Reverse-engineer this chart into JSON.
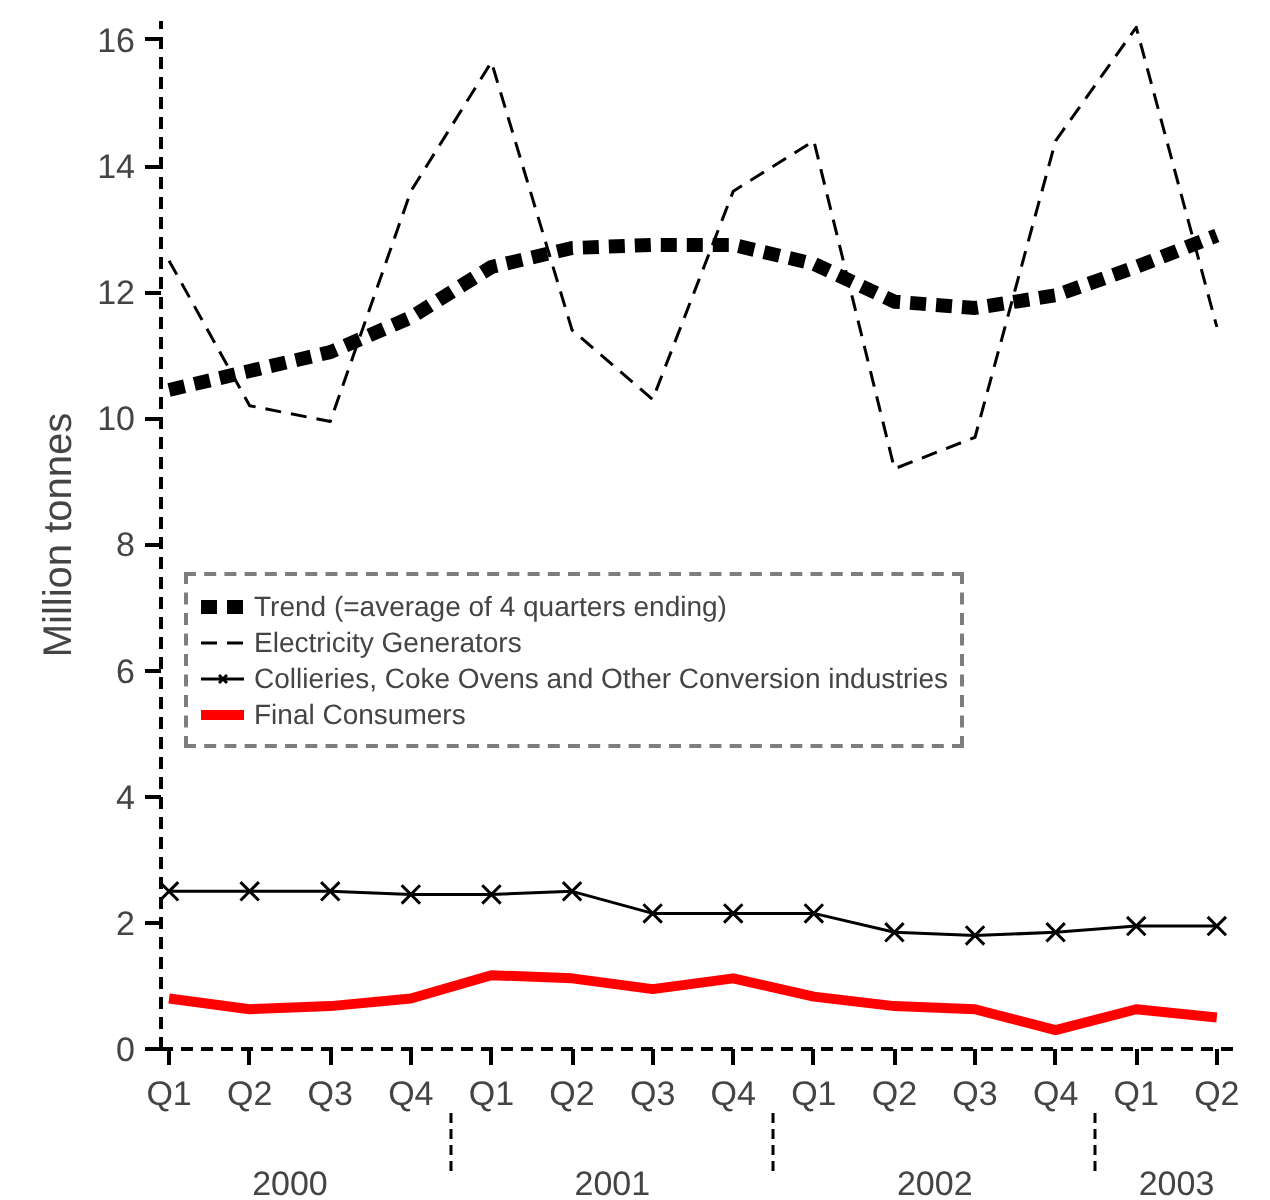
{
  "chart_data": {
    "type": "line",
    "ylabel": "Million tonnes",
    "categories": [
      "Q1",
      "Q2",
      "Q3",
      "Q4",
      "Q1",
      "Q2",
      "Q3",
      "Q4",
      "Q1",
      "Q2",
      "Q3",
      "Q4",
      "Q1",
      "Q2"
    ],
    "annotations": [
      "2000",
      "2001",
      "2002",
      "2003"
    ],
    "series": [
      {
        "name": "Trend (=average of 4 quarters ending)",
        "color": "#000000",
        "line_style": "dashed",
        "values": [
          10.45,
          10.75,
          11.05,
          11.6,
          12.4,
          12.7,
          12.75,
          12.75,
          12.45,
          11.85,
          11.75,
          11.95,
          12.4,
          12.9
        ]
      },
      {
        "name": "Electricity Generators",
        "color": "#000000",
        "line_style": "dashed",
        "values": [
          12.5,
          10.2,
          9.95,
          13.6,
          15.65,
          11.4,
          10.3,
          13.6,
          14.4,
          9.2,
          9.7,
          14.4,
          16.2,
          11.45
        ]
      },
      {
        "name": "Collieries, Coke Ovens and Other Conversion industries",
        "color": "#000000",
        "line_style": "solid",
        "marker": "cross",
        "values": [
          2.5,
          2.5,
          2.5,
          2.45,
          2.45,
          2.5,
          2.15,
          2.15,
          2.15,
          1.85,
          1.8,
          1.85,
          1.95,
          1.95
        ]
      },
      {
        "name": "Final Consumers",
        "color": "#ff0000",
        "line_style": "solid",
        "values": [
          0.8,
          0.63,
          0.68,
          0.8,
          1.17,
          1.12,
          0.95,
          1.12,
          0.83,
          0.68,
          0.63,
          0.3,
          0.63,
          0.5
        ]
      }
    ],
    "ylim": [
      0,
      16.3
    ],
    "yticks": [
      0,
      2,
      4,
      6,
      8,
      10,
      12,
      14,
      16
    ],
    "grid": false,
    "legend": "left"
  }
}
